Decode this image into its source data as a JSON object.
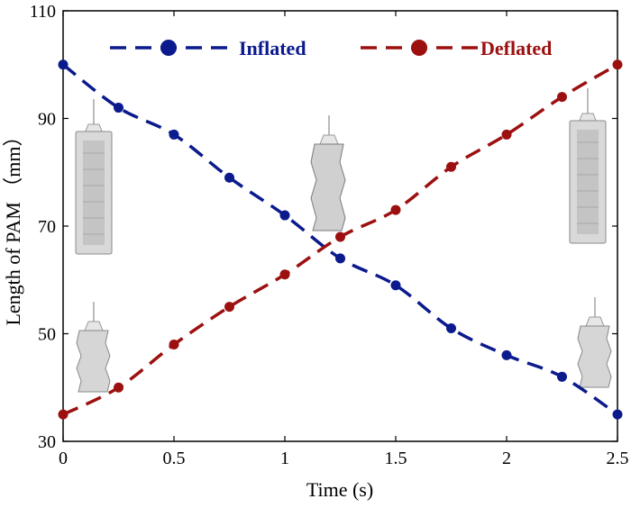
{
  "chart_data": {
    "type": "line",
    "xlabel": "Time (s)",
    "ylabel": "Length of PAM （mm）",
    "xlim": [
      0,
      2.5
    ],
    "ylim": [
      30,
      110
    ],
    "x_ticks": [
      0,
      0.5,
      1,
      1.5,
      2,
      2.5
    ],
    "x_tick_labels": [
      "0",
      "0.5",
      "1",
      "1.5",
      "2",
      "2.5"
    ],
    "y_ticks": [
      30,
      50,
      70,
      90,
      110
    ],
    "y_tick_labels": [
      "30",
      "50",
      "70",
      "90",
      "110"
    ],
    "grid": false,
    "legend_position": "top",
    "x": [
      0,
      0.25,
      0.5,
      0.75,
      1.0,
      1.25,
      1.5,
      1.75,
      2.0,
      2.25,
      2.5
    ],
    "series": [
      {
        "name": "Inflated",
        "color": "#0b1a8c",
        "values": [
          100,
          92,
          87,
          79,
          72,
          64,
          59,
          51,
          46,
          42,
          35
        ]
      },
      {
        "name": "Deflated",
        "color": "#9c1010",
        "values": [
          35,
          40,
          48,
          55,
          61,
          68,
          73,
          81,
          87,
          94,
          100
        ]
      }
    ]
  }
}
